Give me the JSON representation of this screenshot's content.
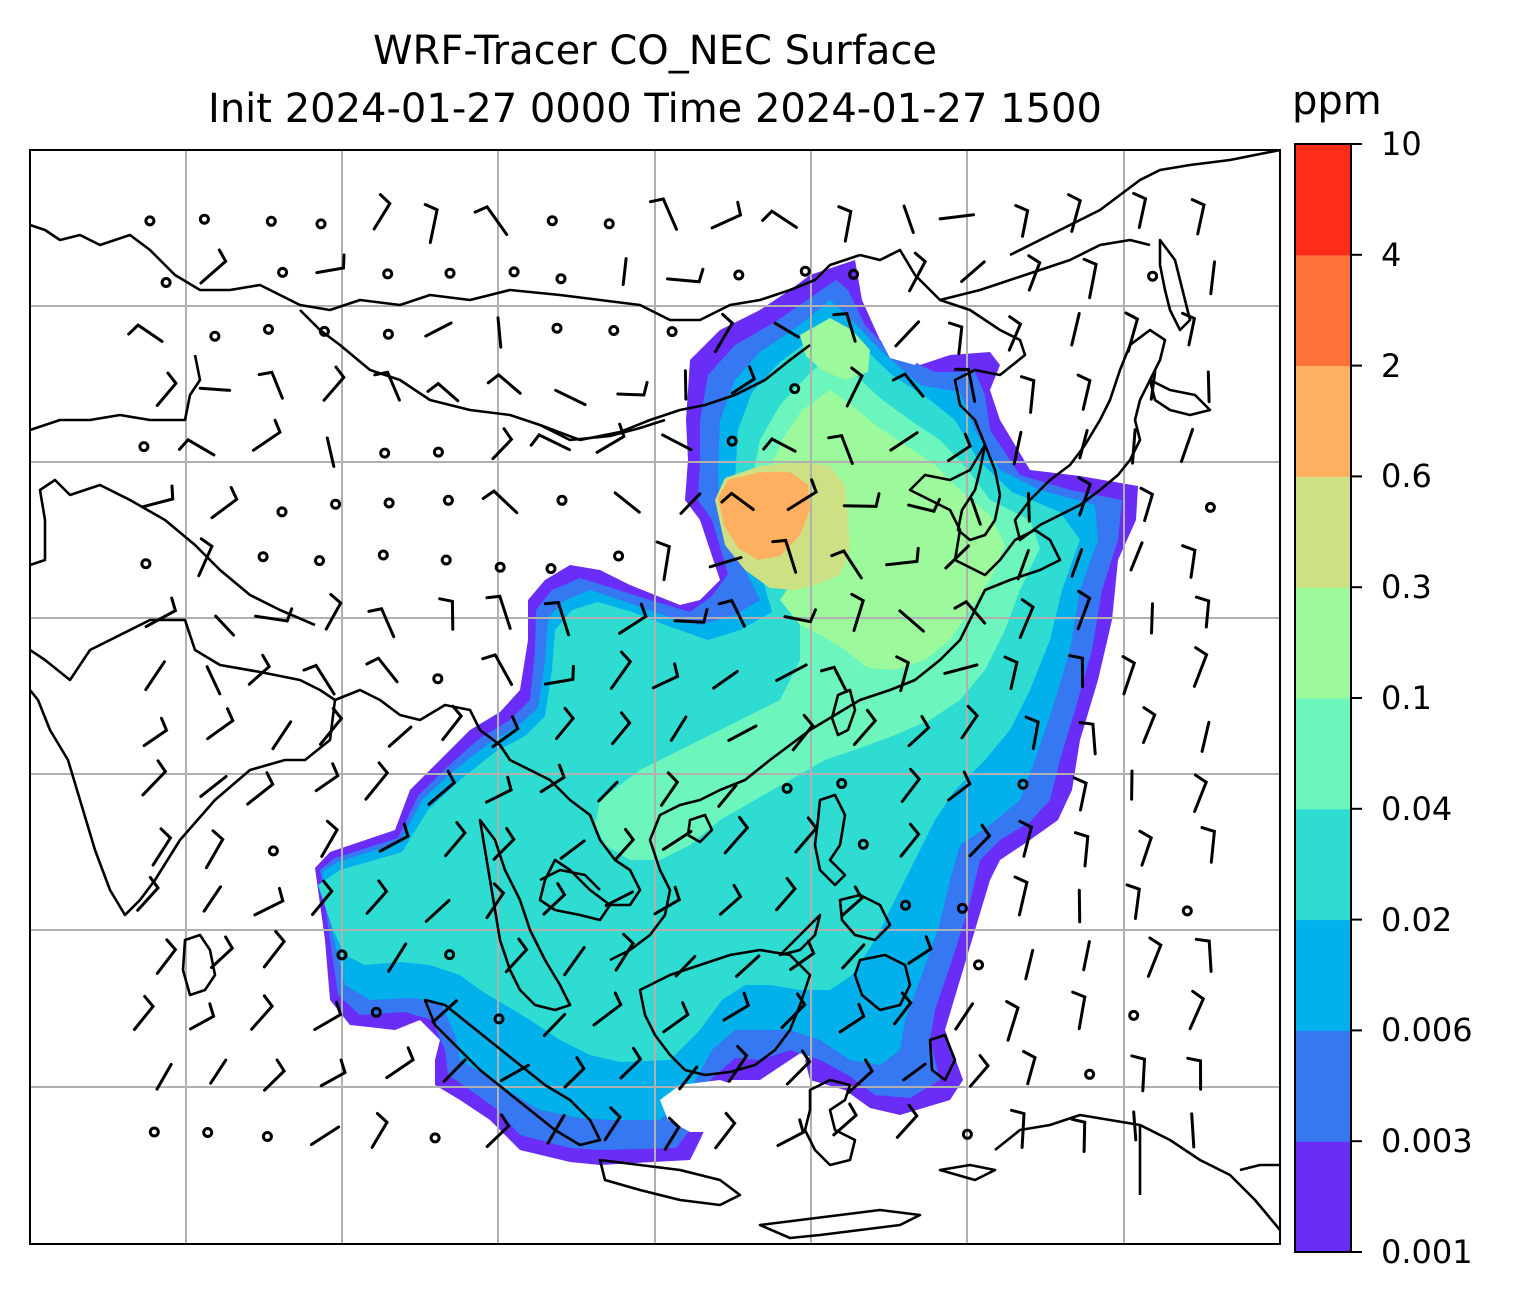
{
  "title": {
    "line1": "WRF-Tracer CO_NEC Surface",
    "line2": "Init 2024-01-27 0000 Time 2024-01-27 1500"
  },
  "colorbar": {
    "unit": "ppm",
    "levels": [
      "0.001",
      "0.003",
      "0.006",
      "0.02",
      "0.04",
      "0.1",
      "0.3",
      "0.6",
      "2",
      "4",
      "10"
    ],
    "colors": [
      "#6a2cf7",
      "#3578f2",
      "#02b0ec",
      "#2fdcd2",
      "#6cf5bd",
      "#9cf99c",
      "#cee084",
      "#ffaf60",
      "#ff7239",
      "#ff2c17"
    ]
  },
  "map": {
    "grid_color": "#b0b0b0",
    "coast_color": "#000000"
  }
}
